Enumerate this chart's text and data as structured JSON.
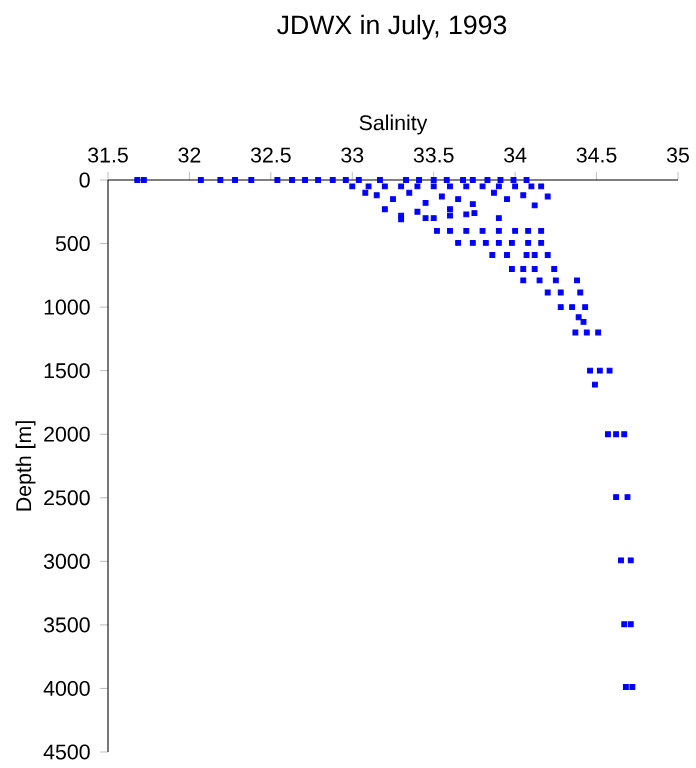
{
  "chart_data": {
    "type": "scatter",
    "title": "JDWX in July, 1993",
    "xlabel": "Salinity",
    "ylabel": "Depth [m]",
    "xlim": [
      31.5,
      35
    ],
    "xticks": [
      31.5,
      32,
      32.5,
      33,
      33.5,
      34,
      34.5,
      35
    ],
    "ylim": [
      4500,
      0
    ],
    "yticks": [
      0,
      500,
      1000,
      1500,
      2000,
      2500,
      3000,
      3500,
      4000,
      4500
    ],
    "grid": false,
    "marker": "square",
    "series": [
      {
        "color": "#0000ff",
        "x": [
          31.68,
          31.72,
          32.07,
          32.19,
          32.28,
          32.38,
          32.54,
          32.63,
          32.71,
          32.79,
          32.88,
          32.96,
          33.04,
          33.17,
          33.33,
          33.41,
          33.5,
          33.58,
          33.68,
          33.74,
          33.83,
          33.91,
          33.99,
          34.07,
          33.0,
          33.1,
          33.2,
          33.3,
          33.4,
          33.5,
          33.6,
          33.7,
          33.8,
          33.9,
          34.0,
          34.1,
          34.16,
          33.08,
          33.15,
          33.25,
          33.35,
          33.45,
          33.55,
          33.65,
          33.74,
          33.87,
          33.95,
          34.05,
          34.12,
          34.2,
          33.2,
          33.3,
          33.4,
          33.5,
          33.6,
          33.7,
          33.3,
          33.45,
          33.6,
          33.75,
          33.9,
          33.52,
          33.6,
          33.7,
          33.8,
          33.9,
          34.0,
          34.08,
          34.16,
          33.65,
          33.74,
          33.82,
          33.9,
          33.98,
          34.08,
          34.16,
          33.86,
          33.95,
          34.07,
          34.12,
          34.2,
          33.98,
          34.05,
          34.12,
          34.24,
          34.05,
          34.15,
          34.25,
          34.38,
          34.2,
          34.28,
          34.4,
          34.28,
          34.35,
          34.43,
          34.39,
          34.42,
          34.37,
          34.44,
          34.51,
          34.46,
          34.52,
          34.58,
          34.49,
          34.57,
          34.62,
          34.67,
          34.62,
          34.69,
          34.65,
          34.71,
          34.67,
          34.71,
          34.68,
          34.72
        ],
        "values": [
          0,
          0,
          0,
          0,
          0,
          0,
          0,
          0,
          0,
          0,
          0,
          0,
          0,
          0,
          0,
          0,
          0,
          0,
          0,
          0,
          0,
          0,
          0,
          0,
          50,
          50,
          50,
          50,
          50,
          50,
          50,
          50,
          50,
          50,
          50,
          50,
          50,
          100,
          120,
          150,
          100,
          180,
          130,
          150,
          190,
          100,
          150,
          120,
          200,
          130,
          230,
          280,
          250,
          300,
          230,
          270,
          310,
          300,
          280,
          260,
          300,
          400,
          400,
          400,
          400,
          400,
          400,
          400,
          400,
          495,
          495,
          495,
          495,
          495,
          495,
          495,
          590,
          590,
          590,
          590,
          590,
          700,
          700,
          700,
          700,
          790,
          790,
          790,
          790,
          885,
          885,
          885,
          1000,
          1000,
          1000,
          1080,
          1116,
          1200,
          1200,
          1200,
          1500,
          1500,
          1500,
          1610,
          2000,
          2000,
          2000,
          2495,
          2495,
          2992,
          2992,
          3495,
          3495,
          3989,
          3989
        ]
      }
    ]
  }
}
